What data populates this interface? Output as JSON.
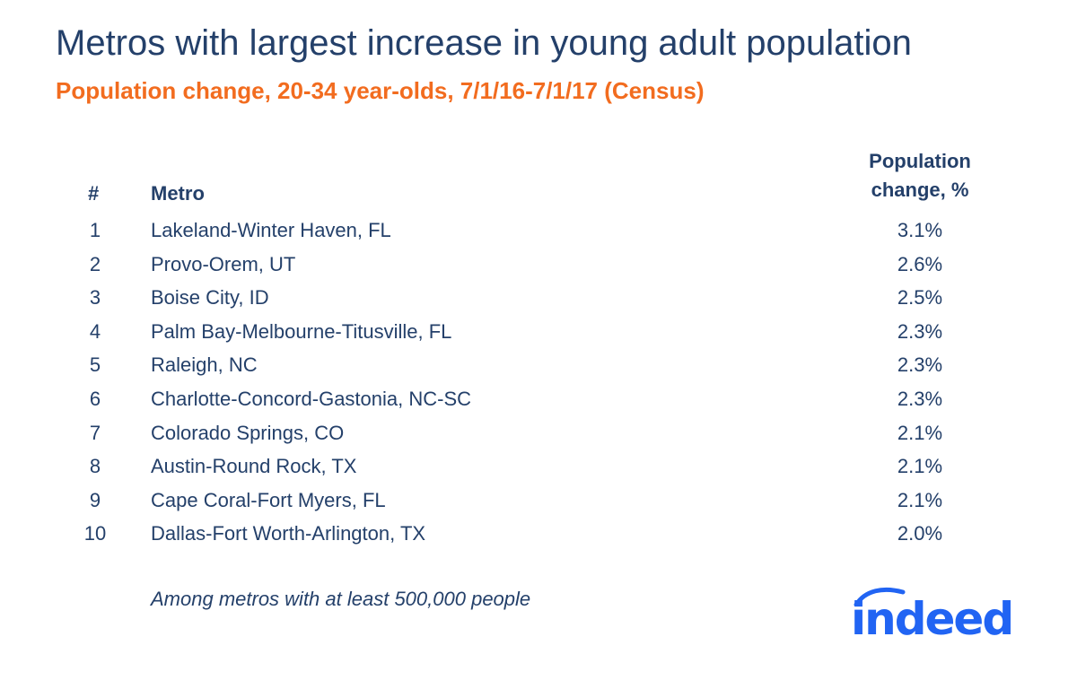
{
  "chart_data": {
    "type": "table",
    "title": "Metros with largest increase in young adult population",
    "subtitle": "Population change, 20-34 year-olds, 7/1/16-7/1/17 (Census)",
    "columns": [
      "#",
      "Metro",
      "Population change, %"
    ],
    "header": {
      "rank": "#",
      "metro": "Metro",
      "change": "Population change, %"
    },
    "rows": [
      {
        "rank": "1",
        "metro": "Lakeland-Winter Haven, FL",
        "value": "3.1%"
      },
      {
        "rank": "2",
        "metro": "Provo-Orem, UT",
        "value": "2.6%"
      },
      {
        "rank": "3",
        "metro": "Boise City, ID",
        "value": "2.5%"
      },
      {
        "rank": "4",
        "metro": "Palm Bay-Melbourne-Titusville, FL",
        "value": "2.3%"
      },
      {
        "rank": "5",
        "metro": "Raleigh, NC",
        "value": "2.3%"
      },
      {
        "rank": "6",
        "metro": "Charlotte-Concord-Gastonia, NC-SC",
        "value": "2.3%"
      },
      {
        "rank": "7",
        "metro": "Colorado Springs, CO",
        "value": "2.1%"
      },
      {
        "rank": "8",
        "metro": "Austin-Round Rock, TX",
        "value": "2.1%"
      },
      {
        "rank": "9",
        "metro": "Cape Coral-Fort Myers, FL",
        "value": "2.1%"
      },
      {
        "rank": "10",
        "metro": "Dallas-Fort Worth-Arlington, TX",
        "value": "2.0%"
      }
    ],
    "footnote": "Among metros with at least 500,000 people"
  },
  "logo": {
    "text": "indeed",
    "color": "#2164f3"
  },
  "colors": {
    "text": "#24406a",
    "subtitle": "#f26c1f"
  }
}
